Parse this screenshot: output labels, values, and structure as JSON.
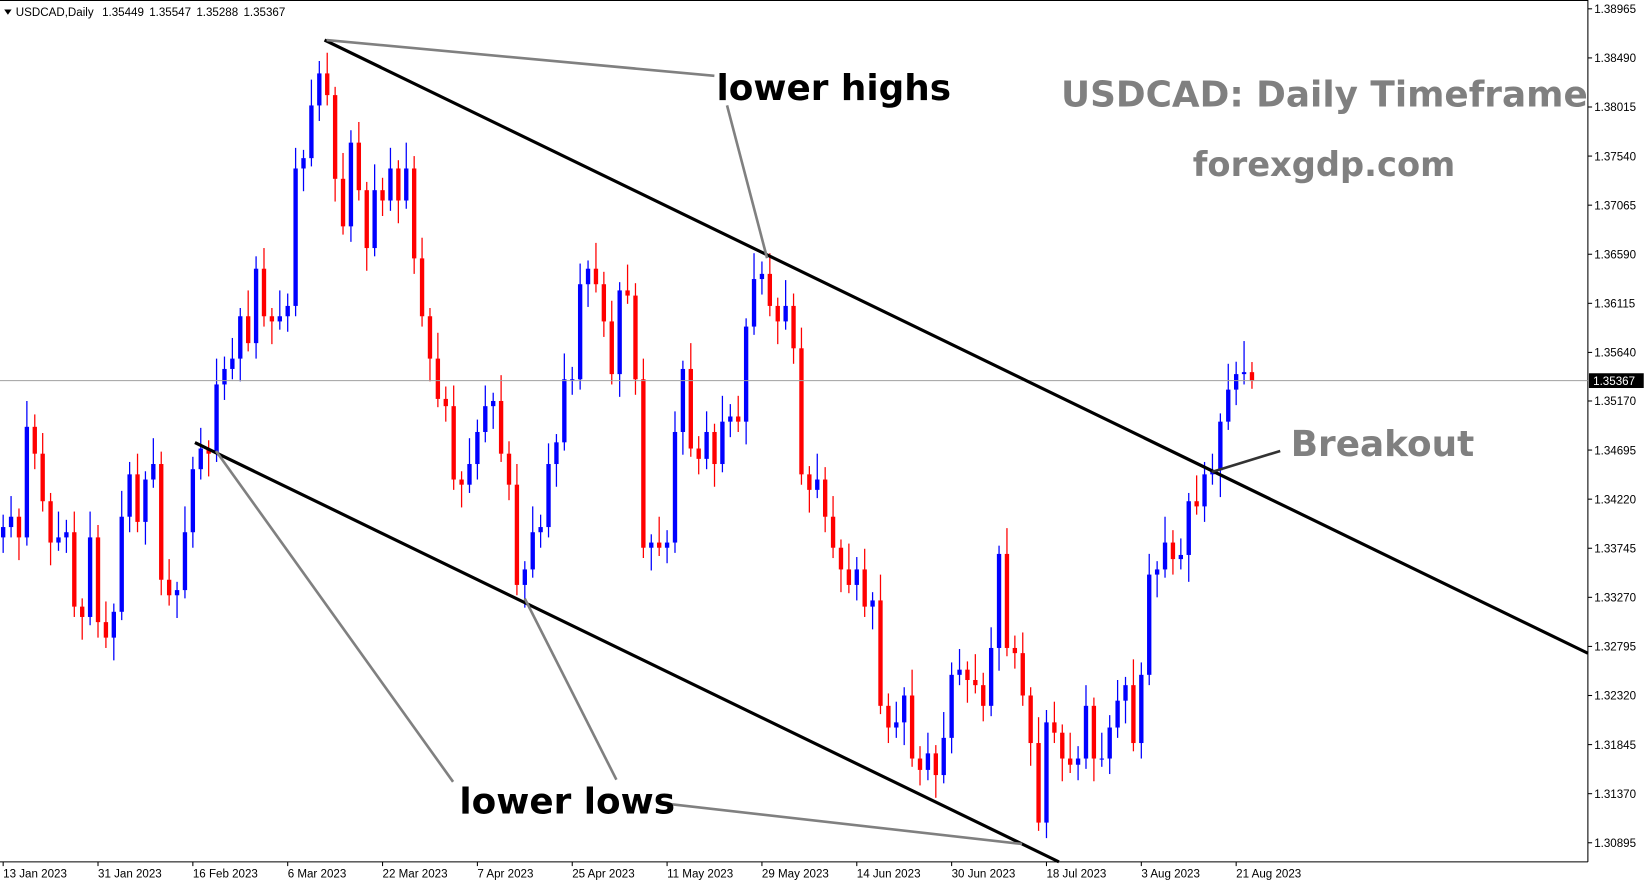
{
  "chart_data": {
    "type": "candlestick",
    "symbol": "USDCAD,Daily",
    "title": "USDCAD: Daily Timeframe",
    "subtitle": "forexgdp.com",
    "annotations": [
      "lower highs",
      "lower lows",
      "Breakout"
    ],
    "up_color": "#0000ff",
    "down_color": "#ff0000",
    "grid": false,
    "xlim": [
      -0.4,
      200.5
    ],
    "xticks": [
      {
        "value": 0,
        "label": "13 Jan 2023"
      },
      {
        "value": 12,
        "label": "31 Jan 2023"
      },
      {
        "value": 24,
        "label": "16 Feb 2023"
      },
      {
        "value": 36,
        "label": "6 Mar 2023"
      },
      {
        "value": 48,
        "label": "22 Mar 2023"
      },
      {
        "value": 60,
        "label": "7 Apr 2023"
      },
      {
        "value": 72,
        "label": "25 Apr 2023"
      },
      {
        "value": 84,
        "label": "11 May 2023"
      },
      {
        "value": 96,
        "label": "29 May 2023"
      },
      {
        "value": 108,
        "label": "14 Jun 2023"
      },
      {
        "value": 120,
        "label": "30 Jun 2023"
      },
      {
        "value": 132,
        "label": "18 Jul 2023"
      },
      {
        "value": 144,
        "label": "3 Aug 2023"
      },
      {
        "value": 156,
        "label": "21 Aug 2023"
      }
    ],
    "ylim": [
      1.3071,
      1.3903
    ],
    "yticks": [
      1.38965,
      {
        "value": 1.3849,
        "label": "1.38490"
      },
      1.38015,
      {
        "value": 1.3754,
        "label": "1.37540"
      },
      1.37065,
      {
        "value": 1.3659,
        "label": "1.36590"
      },
      1.36115,
      {
        "value": 1.3564,
        "label": "1.35640"
      },
      {
        "value": 1.3517,
        "label": "1.35170"
      },
      1.34695,
      {
        "value": 1.3422,
        "label": "1.34220"
      },
      1.33745,
      {
        "value": 1.3327,
        "label": "1.33270"
      },
      1.32795,
      {
        "value": 1.3232,
        "label": "1.32320"
      },
      1.31845,
      {
        "value": 1.3137,
        "label": "1.31370"
      },
      1.30895
    ],
    "candles": [
      [
        1.3385,
        1.3407,
        1.337,
        1.3395
      ],
      [
        1.3395,
        1.3425,
        1.3385,
        1.3405
      ],
      [
        1.3405,
        1.3413,
        1.3363,
        1.3385
      ],
      [
        1.3385,
        1.3517,
        1.3377,
        1.3492
      ],
      [
        1.3492,
        1.3504,
        1.3451,
        1.3466
      ],
      [
        1.3466,
        1.3486,
        1.341,
        1.342
      ],
      [
        1.342,
        1.3428,
        1.3358,
        1.338
      ],
      [
        1.338,
        1.341,
        1.3372,
        1.3385
      ],
      [
        1.3385,
        1.3402,
        1.337,
        1.339
      ],
      [
        1.339,
        1.341,
        1.3308,
        1.3318
      ],
      [
        1.3318,
        1.3326,
        1.3286,
        1.3308
      ],
      [
        1.3308,
        1.341,
        1.33,
        1.3385
      ],
      [
        1.3385,
        1.3397,
        1.3288,
        1.3303
      ],
      [
        1.3303,
        1.3323,
        1.3278,
        1.3288
      ],
      [
        1.3288,
        1.3321,
        1.3266,
        1.3313
      ],
      [
        1.3313,
        1.343,
        1.3305,
        1.3405
      ],
      [
        1.3405,
        1.3458,
        1.339,
        1.3446
      ],
      [
        1.3446,
        1.3466,
        1.339,
        1.34
      ],
      [
        1.34,
        1.3449,
        1.3378,
        1.3441
      ],
      [
        1.3441,
        1.3481,
        1.3433,
        1.3456
      ],
      [
        1.3456,
        1.3468,
        1.3329,
        1.3344
      ],
      [
        1.3344,
        1.3364,
        1.3319,
        1.3329
      ],
      [
        1.3329,
        1.3342,
        1.3307,
        1.3334
      ],
      [
        1.3334,
        1.3415,
        1.3326,
        1.339
      ],
      [
        1.339,
        1.3463,
        1.3375,
        1.3451
      ],
      [
        1.3451,
        1.3491,
        1.3441,
        1.3471
      ],
      [
        1.3471,
        1.3479,
        1.3444,
        1.3466
      ],
      [
        1.3466,
        1.3558,
        1.3458,
        1.3533
      ],
      [
        1.3533,
        1.356,
        1.3518,
        1.3548
      ],
      [
        1.3548,
        1.3578,
        1.3538,
        1.3558
      ],
      [
        1.3558,
        1.3607,
        1.3536,
        1.3599
      ],
      [
        1.3599,
        1.3624,
        1.3565,
        1.3573
      ],
      [
        1.3573,
        1.3657,
        1.3558,
        1.3645
      ],
      [
        1.3645,
        1.3665,
        1.3589,
        1.3599
      ],
      [
        1.3599,
        1.3607,
        1.3572,
        1.3594
      ],
      [
        1.3594,
        1.3624,
        1.3586,
        1.3599
      ],
      [
        1.3599,
        1.3621,
        1.3584,
        1.3609
      ],
      [
        1.3609,
        1.3762,
        1.3599,
        1.3742
      ],
      [
        1.3742,
        1.376,
        1.372,
        1.3752
      ],
      [
        1.3752,
        1.3828,
        1.3744,
        1.3803
      ],
      [
        1.3803,
        1.3846,
        1.3788,
        1.3834
      ],
      [
        1.3834,
        1.3854,
        1.3803,
        1.3813
      ],
      [
        1.3813,
        1.3821,
        1.371,
        1.3732
      ],
      [
        1.3732,
        1.3757,
        1.3678,
        1.3686
      ],
      [
        1.3686,
        1.3779,
        1.3671,
        1.3767
      ],
      [
        1.3767,
        1.3787,
        1.3711,
        1.3721
      ],
      [
        1.3721,
        1.3729,
        1.3643,
        1.3665
      ],
      [
        1.3665,
        1.3746,
        1.3657,
        1.3721
      ],
      [
        1.3721,
        1.3733,
        1.3696,
        1.3711
      ],
      [
        1.3711,
        1.3762,
        1.3701,
        1.3742
      ],
      [
        1.3742,
        1.375,
        1.3689,
        1.3711
      ],
      [
        1.3711,
        1.3767,
        1.3703,
        1.3742
      ],
      [
        1.3742,
        1.3754,
        1.364,
        1.3655
      ],
      [
        1.3655,
        1.3675,
        1.3589,
        1.3599
      ],
      [
        1.3599,
        1.3607,
        1.3536,
        1.3558
      ],
      [
        1.3558,
        1.3583,
        1.3511,
        1.3519
      ],
      [
        1.3519,
        1.3531,
        1.3497,
        1.3512
      ],
      [
        1.3512,
        1.3532,
        1.3431,
        1.3441
      ],
      [
        1.3441,
        1.3449,
        1.3414,
        1.3436
      ],
      [
        1.3436,
        1.3481,
        1.3428,
        1.3456
      ],
      [
        1.3456,
        1.3499,
        1.3441,
        1.3487
      ],
      [
        1.3487,
        1.3532,
        1.3477,
        1.3512
      ],
      [
        1.3512,
        1.3525,
        1.349,
        1.3517
      ],
      [
        1.3517,
        1.3542,
        1.3458,
        1.3466
      ],
      [
        1.3466,
        1.3478,
        1.3421,
        1.3436
      ],
      [
        1.3436,
        1.3456,
        1.3329,
        1.3339
      ],
      [
        1.3339,
        1.3362,
        1.3317,
        1.3354
      ],
      [
        1.3354,
        1.3415,
        1.3346,
        1.339
      ],
      [
        1.339,
        1.3407,
        1.3375,
        1.3395
      ],
      [
        1.3395,
        1.3476,
        1.3385,
        1.3456
      ],
      [
        1.3456,
        1.3485,
        1.3434,
        1.3477
      ],
      [
        1.3477,
        1.3563,
        1.3469,
        1.3538
      ],
      [
        1.3538,
        1.355,
        1.3523,
        1.3538
      ],
      [
        1.3538,
        1.365,
        1.3528,
        1.363
      ],
      [
        1.363,
        1.3653,
        1.3608,
        1.3645
      ],
      [
        1.3645,
        1.367,
        1.3622,
        1.363
      ],
      [
        1.363,
        1.3642,
        1.3579,
        1.3594
      ],
      [
        1.3594,
        1.3614,
        1.3533,
        1.3543
      ],
      [
        1.3543,
        1.3632,
        1.3521,
        1.3624
      ],
      [
        1.3624,
        1.3649,
        1.3611,
        1.3619
      ],
      [
        1.3619,
        1.3631,
        1.3523,
        1.3538
      ],
      [
        1.3538,
        1.3558,
        1.3365,
        1.3375
      ],
      [
        1.3375,
        1.3388,
        1.3353,
        1.338
      ],
      [
        1.338,
        1.3405,
        1.3367,
        1.3375
      ],
      [
        1.3375,
        1.3392,
        1.336,
        1.338
      ],
      [
        1.338,
        1.3507,
        1.337,
        1.3487
      ],
      [
        1.3487,
        1.3556,
        1.3465,
        1.3548
      ],
      [
        1.3548,
        1.3573,
        1.3463,
        1.3471
      ],
      [
        1.3471,
        1.3483,
        1.3446,
        1.3461
      ],
      [
        1.3461,
        1.3507,
        1.3451,
        1.3487
      ],
      [
        1.3487,
        1.3495,
        1.3434,
        1.3456
      ],
      [
        1.3456,
        1.3522,
        1.3448,
        1.3497
      ],
      [
        1.3497,
        1.3514,
        1.3482,
        1.3502
      ],
      [
        1.3502,
        1.3522,
        1.3487,
        1.3497
      ],
      [
        1.3497,
        1.3597,
        1.3475,
        1.3589
      ],
      [
        1.3589,
        1.366,
        1.3581,
        1.3635
      ],
      [
        1.3635,
        1.3652,
        1.362,
        1.364
      ],
      [
        1.364,
        1.366,
        1.3599,
        1.3609
      ],
      [
        1.3609,
        1.3617,
        1.3572,
        1.3594
      ],
      [
        1.3594,
        1.3634,
        1.3586,
        1.3609
      ],
      [
        1.3609,
        1.3621,
        1.3553,
        1.3568
      ],
      [
        1.3568,
        1.3588,
        1.3436,
        1.3446
      ],
      [
        1.3446,
        1.3454,
        1.3409,
        1.3431
      ],
      [
        1.3431,
        1.3466,
        1.3423,
        1.3441
      ],
      [
        1.3441,
        1.3453,
        1.339,
        1.3405
      ],
      [
        1.3405,
        1.3425,
        1.3365,
        1.3375
      ],
      [
        1.3375,
        1.3383,
        1.3332,
        1.3354
      ],
      [
        1.3354,
        1.3379,
        1.3331,
        1.3339
      ],
      [
        1.3339,
        1.3366,
        1.3324,
        1.3354
      ],
      [
        1.3354,
        1.3374,
        1.3308,
        1.3318
      ],
      [
        1.3318,
        1.3332,
        1.3296,
        1.3324
      ],
      [
        1.3324,
        1.3349,
        1.3214,
        1.3222
      ],
      [
        1.3222,
        1.3234,
        1.3186,
        1.3201
      ],
      [
        1.3201,
        1.3226,
        1.3191,
        1.3206
      ],
      [
        1.3206,
        1.324,
        1.3184,
        1.3232
      ],
      [
        1.3232,
        1.3257,
        1.3163,
        1.3171
      ],
      [
        1.3171,
        1.3183,
        1.3145,
        1.316
      ],
      [
        1.316,
        1.3196,
        1.315,
        1.3176
      ],
      [
        1.3176,
        1.3184,
        1.3133,
        1.3155
      ],
      [
        1.3155,
        1.3216,
        1.3147,
        1.3191
      ],
      [
        1.3191,
        1.3264,
        1.3176,
        1.3252
      ],
      [
        1.3252,
        1.3277,
        1.3242,
        1.3257
      ],
      [
        1.3257,
        1.3265,
        1.3225,
        1.3247
      ],
      [
        1.3247,
        1.3272,
        1.3234,
        1.3242
      ],
      [
        1.3242,
        1.3254,
        1.3207,
        1.3222
      ],
      [
        1.3222,
        1.3298,
        1.3212,
        1.3278
      ],
      [
        1.3278,
        1.3377,
        1.3256,
        1.3369
      ],
      [
        1.3369,
        1.3394,
        1.327,
        1.3278
      ],
      [
        1.3278,
        1.329,
        1.3258,
        1.3273
      ],
      [
        1.3273,
        1.3293,
        1.3222,
        1.3232
      ],
      [
        1.3232,
        1.324,
        1.3164,
        1.3186
      ],
      [
        1.3186,
        1.3211,
        1.3101,
        1.3109
      ],
      [
        1.3109,
        1.3218,
        1.3094,
        1.3206
      ],
      [
        1.3206,
        1.3226,
        1.3186,
        1.3196
      ],
      [
        1.3196,
        1.3204,
        1.3149,
        1.3171
      ],
      [
        1.3171,
        1.3196,
        1.3157,
        1.3165
      ],
      [
        1.3165,
        1.3183,
        1.315,
        1.3171
      ],
      [
        1.3171,
        1.3242,
        1.3161,
        1.3222
      ],
      [
        1.3222,
        1.323,
        1.3149,
        1.3171
      ],
      [
        1.3171,
        1.3196,
        1.3163,
        1.3171
      ],
      [
        1.3171,
        1.3213,
        1.3156,
        1.3201
      ],
      [
        1.3201,
        1.3247,
        1.3191,
        1.3227
      ],
      [
        1.3227,
        1.325,
        1.3205,
        1.3242
      ],
      [
        1.3242,
        1.3267,
        1.3178,
        1.3186
      ],
      [
        1.3186,
        1.3264,
        1.3171,
        1.3252
      ],
      [
        1.3252,
        1.3369,
        1.3242,
        1.3349
      ],
      [
        1.3349,
        1.3362,
        1.3327,
        1.3354
      ],
      [
        1.3354,
        1.3405,
        1.3346,
        1.338
      ],
      [
        1.338,
        1.3392,
        1.3349,
        1.3364
      ],
      [
        1.3364,
        1.3384,
        1.3354,
        1.3368
      ],
      [
        1.3368,
        1.3428,
        1.3342,
        1.342
      ],
      [
        1.342,
        1.3445,
        1.3407,
        1.3415
      ],
      [
        1.3415,
        1.3458,
        1.34,
        1.3446
      ],
      [
        1.3446,
        1.3466,
        1.3436,
        1.345
      ],
      [
        1.345,
        1.3505,
        1.3424,
        1.3497
      ],
      [
        1.3497,
        1.3553,
        1.3489,
        1.3528
      ],
      [
        1.3528,
        1.3555,
        1.3513,
        1.3543
      ],
      [
        1.3543,
        1.3575,
        1.3533,
        1.35449
      ],
      [
        1.35449,
        1.35547,
        1.35288,
        1.35367
      ]
    ]
  }
}
